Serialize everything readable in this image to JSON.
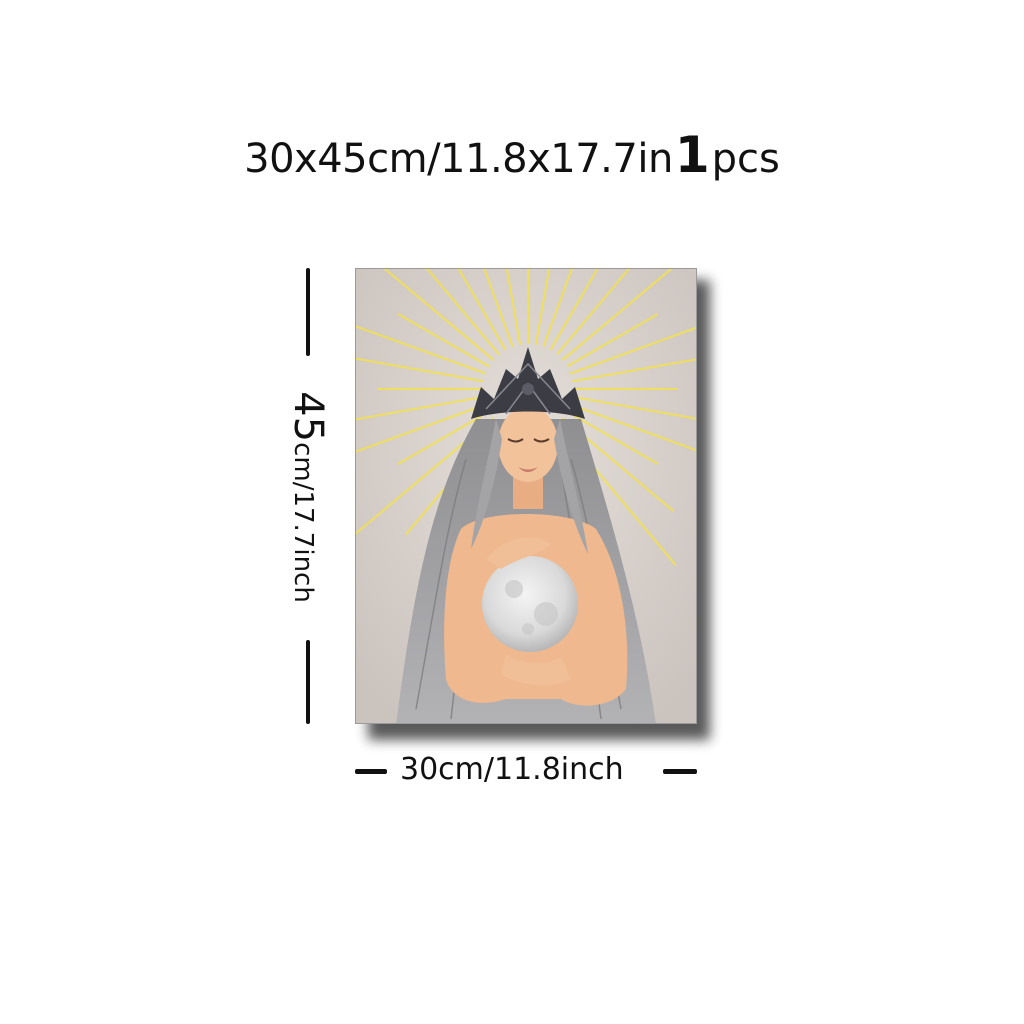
{
  "title": {
    "size_text": "30x45cm/11.8x17.7in",
    "quantity": "1",
    "quantity_unit": "pcs"
  },
  "dimensions": {
    "height_value": "45",
    "height_text": "cm/17.7inch",
    "width_text": "30cm/11.8inch"
  },
  "artwork": {
    "subject": "woman-with-crown-holding-moon",
    "colors": {
      "background": "#d8d1cc",
      "rays": "#f3e24a",
      "hair": "#9a9a9c",
      "skin": "#efb88e",
      "crown": "#3c3c44",
      "moon": "#e6e6e6"
    }
  }
}
